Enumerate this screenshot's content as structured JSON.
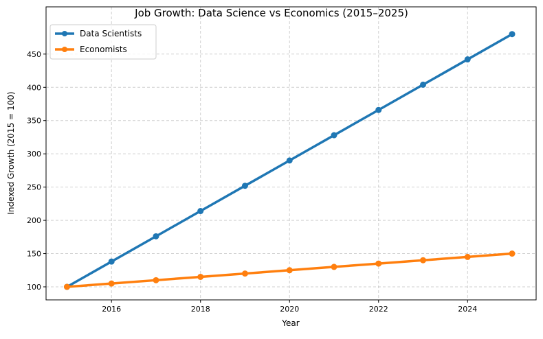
{
  "chart_data": {
    "type": "line",
    "title": "Job Growth: Data Science vs Economics (2015–2025)",
    "xlabel": "Year",
    "ylabel": "Indexed Growth (2015 = 100)",
    "x": [
      2015,
      2016,
      2017,
      2018,
      2019,
      2020,
      2021,
      2022,
      2023,
      2024,
      2025
    ],
    "series": [
      {
        "name": "Data Scientists",
        "color": "#1f77b4",
        "values": [
          100,
          138,
          176,
          214,
          252,
          290,
          328,
          366,
          404,
          442,
          480
        ]
      },
      {
        "name": "Economists",
        "color": "#ff7f0e",
        "values": [
          100,
          105,
          110,
          115,
          120,
          125,
          130,
          135,
          140,
          145,
          150
        ]
      }
    ],
    "xticks": [
      "2016",
      "2018",
      "2020",
      "2022",
      "2024"
    ],
    "yticks": [
      "100",
      "150",
      "200",
      "250",
      "300",
      "350",
      "400",
      "450"
    ],
    "xlim": [
      2014.53,
      2025.54
    ],
    "ylim": [
      80.4,
      521
    ],
    "grid": true,
    "legend": "top-left"
  }
}
